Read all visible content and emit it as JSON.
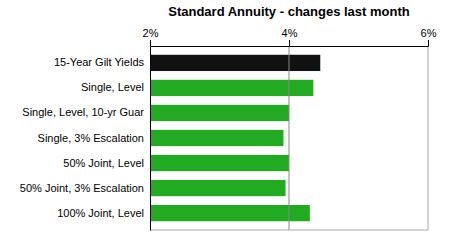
{
  "chart_data": {
    "type": "bar",
    "orientation": "horizontal",
    "title": "Standard Annuity - changes last month",
    "categories": [
      "100% Joint, Level",
      "50% Joint, 3% Escalation",
      "50% Joint, Level",
      "Single, 3% Escalation",
      "Single, Level, 10-yr Guar",
      "Single, Level",
      "15-Year Gilt Yields"
    ],
    "values": [
      4.3,
      3.95,
      4.0,
      3.92,
      4.0,
      4.35,
      4.45
    ],
    "colors": [
      "#22aa22",
      "#22aa22",
      "#22aa22",
      "#22aa22",
      "#22aa22",
      "#22aa22",
      "#111111"
    ],
    "xlim": [
      2.0,
      6.0
    ],
    "xticks": [
      {
        "value": 2.0,
        "label": "2%"
      },
      {
        "value": 4.0,
        "label": "4%"
      },
      {
        "value": 6.0,
        "label": "6%"
      }
    ],
    "reference_line": 4.0,
    "grid": false
  }
}
